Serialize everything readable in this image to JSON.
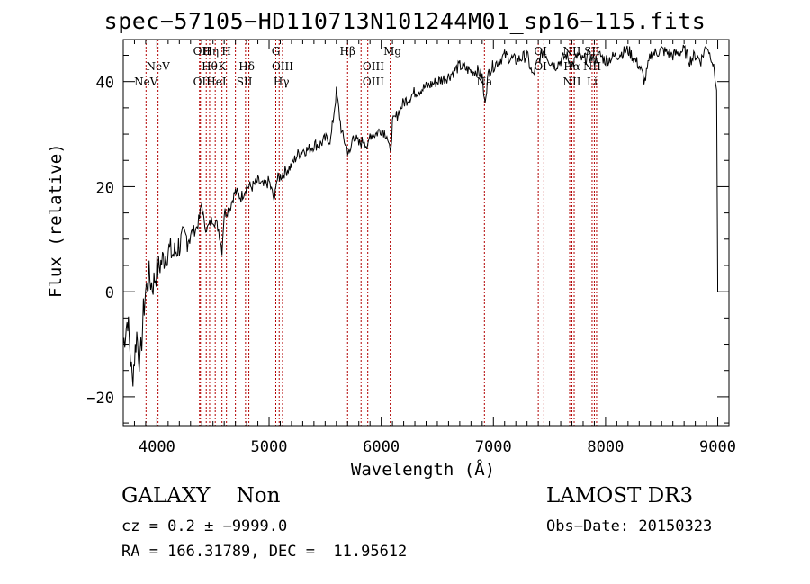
{
  "header": {
    "title": "spec−57105−HD110713N101244M01_sp16−115.fits"
  },
  "footer": {
    "class_line": "GALAXY    Non",
    "cz_line": "cz = 0.2 ± −9999.0",
    "radec_line": "RA = 166.31789, DEC =  11.95612",
    "survey": "LAMOST DR3",
    "obs_date": "Obs−Date: 20150323"
  },
  "chart_data": {
    "type": "line",
    "title": "spec−57105−HD110713N101244M01_sp16−115.fits",
    "xlabel": "Wavelength (Å)",
    "ylabel": "Flux (relative)",
    "xlim": [
      3700,
      9100
    ],
    "ylim": [
      -25.5,
      48
    ],
    "xticks": [
      4000,
      5000,
      6000,
      7000,
      8000,
      9000
    ],
    "yticks": [
      -20,
      0,
      20,
      40
    ],
    "grid": false,
    "series": [
      {
        "x": [
          3700,
          3740,
          3780,
          3820,
          3850,
          3880,
          3900,
          3930,
          3960,
          4000,
          4050,
          4100,
          4150,
          4200,
          4250,
          4300,
          4350,
          4380,
          4400,
          4420,
          4450,
          4500,
          4550,
          4580,
          4600,
          4650,
          4680,
          4700,
          4750,
          4800,
          4850,
          4900,
          4950,
          5000,
          5050,
          5060,
          5100,
          5150,
          5200,
          5250,
          5300,
          5350,
          5400,
          5450,
          5500,
          5550,
          5600,
          5650,
          5700,
          5720,
          5750,
          5800,
          5850,
          5880,
          5900,
          5950,
          6000,
          6050,
          6080,
          6100,
          6150,
          6200,
          6300,
          6400,
          6500,
          6600,
          6700,
          6800,
          6860,
          6900,
          6920,
          6960,
          7000,
          7100,
          7200,
          7300,
          7350,
          7400,
          7450,
          7500,
          7550,
          7600,
          7650,
          7700,
          7750,
          7800,
          7850,
          7900,
          7950,
          8000,
          8100,
          8200,
          8300,
          8350,
          8400,
          8500,
          8600,
          8700,
          8750,
          8800,
          8850,
          8900,
          8950,
          8970,
          8990,
          9000
        ],
        "y": [
          -10,
          -5,
          -17,
          -8,
          -14,
          -4,
          0,
          3,
          1,
          4,
          6,
          8,
          7,
          9,
          10,
          11,
          12,
          14,
          17,
          13,
          12,
          14,
          12,
          8,
          15,
          16,
          18,
          19,
          18,
          20,
          20,
          21,
          20,
          21,
          17,
          21,
          22,
          23,
          24,
          26,
          27,
          27,
          28,
          28,
          29,
          29,
          38,
          30,
          27,
          26,
          30,
          28,
          29,
          27,
          30,
          30,
          31,
          30,
          26,
          32,
          34,
          36,
          38,
          39,
          40,
          41,
          43,
          42,
          42,
          41,
          36,
          42,
          43,
          45,
          44,
          45,
          41,
          44,
          46,
          44,
          43,
          44,
          45,
          43,
          45,
          44,
          45,
          44,
          45,
          44,
          45,
          46,
          43,
          40,
          45,
          46,
          45,
          46,
          44,
          45,
          44,
          47,
          44,
          42,
          38,
          2
        ]
      }
    ],
    "lines": [
      {
        "x": 3903,
        "label": "NeV"
      },
      {
        "x": 4010,
        "label": "NeV"
      },
      {
        "x": 4380,
        "label": "OII"
      },
      {
        "x": 4388,
        "label": "OII"
      },
      {
        "x": 4440,
        "label": "Hθ"
      },
      {
        "x": 4470,
        "label": "Hη"
      },
      {
        "x": 4520,
        "label": "HeI"
      },
      {
        "x": 4580,
        "label": "K"
      },
      {
        "x": 4620,
        "label": "H"
      },
      {
        "x": 4700,
        "label": "SII"
      },
      {
        "x": 4790,
        "label": "Hδ"
      },
      {
        "x": 4820,
        "label": "SII"
      },
      {
        "x": 5060,
        "label": "G"
      },
      {
        "x": 5090,
        "label": "OIII"
      },
      {
        "x": 5120,
        "label": "Hγ"
      },
      {
        "x": 5700,
        "label": "Hβ"
      },
      {
        "x": 5820,
        "label": "OIII"
      },
      {
        "x": 5880,
        "label": "OIII"
      },
      {
        "x": 6080,
        "label": "Mg"
      },
      {
        "x": 6920,
        "label": "Na"
      },
      {
        "x": 7400,
        "label": "OI"
      },
      {
        "x": 7450,
        "label": "OI"
      },
      {
        "x": 7680,
        "label": "NII"
      },
      {
        "x": 7700,
        "label": "Hα"
      },
      {
        "x": 7720,
        "label": "NII"
      },
      {
        "x": 7880,
        "label": "SII"
      },
      {
        "x": 7900,
        "label": "SII"
      },
      {
        "x": 7920,
        "label": "Li"
      }
    ],
    "line_labels": [
      {
        "text": "NeV",
        "x": 3903,
        "row": 3
      },
      {
        "text": "NeV",
        "x": 4010,
        "row": 2
      },
      {
        "text": "OII",
        "x": 4400,
        "row": 1
      },
      {
        "text": "Hη",
        "x": 4480,
        "row": 1
      },
      {
        "text": "H",
        "x": 4620,
        "row": 1
      },
      {
        "text": "Hθ",
        "x": 4470,
        "row": 2
      },
      {
        "text": "K",
        "x": 4580,
        "row": 2
      },
      {
        "text": "Hδ",
        "x": 4800,
        "row": 2
      },
      {
        "text": "OII",
        "x": 4400,
        "row": 3
      },
      {
        "text": "HeI",
        "x": 4530,
        "row": 3
      },
      {
        "text": "SII",
        "x": 4780,
        "row": 3
      },
      {
        "text": "G",
        "x": 5060,
        "row": 1
      },
      {
        "text": "OIII",
        "x": 5120,
        "row": 2
      },
      {
        "text": "Hγ",
        "x": 5110,
        "row": 3
      },
      {
        "text": "Hβ",
        "x": 5700,
        "row": 1
      },
      {
        "text": "OIII",
        "x": 5930,
        "row": 2
      },
      {
        "text": "OIII",
        "x": 5930,
        "row": 3
      },
      {
        "text": "Mg",
        "x": 6100,
        "row": 1
      },
      {
        "text": "Na",
        "x": 6920,
        "row": 3
      },
      {
        "text": "OI",
        "x": 7420,
        "row": 1
      },
      {
        "text": "OI",
        "x": 7420,
        "row": 2
      },
      {
        "text": "NII",
        "x": 7700,
        "row": 1
      },
      {
        "text": "SII",
        "x": 7880,
        "row": 1
      },
      {
        "text": "Hα",
        "x": 7700,
        "row": 2
      },
      {
        "text": "NII",
        "x": 7880,
        "row": 2
      },
      {
        "text": "NII",
        "x": 7700,
        "row": 3
      },
      {
        "text": "Li",
        "x": 7880,
        "row": 3
      }
    ],
    "colors": {
      "spectrum": "#000000",
      "lines": "#b20000",
      "axes": "#000000"
    }
  }
}
